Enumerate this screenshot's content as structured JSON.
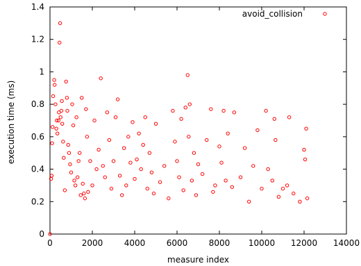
{
  "chart_data": {
    "type": "scatter",
    "title": "",
    "xlabel": "measure index",
    "ylabel": "execution time (ms)",
    "xlim": [
      0,
      14000
    ],
    "ylim": [
      0,
      1.4
    ],
    "x_ticks": [
      "0",
      "2000",
      "4000",
      "6000",
      "8000",
      "10000",
      "12000",
      "14000"
    ],
    "y_ticks": [
      "0",
      "0.2",
      "0.4",
      "0.6",
      "0.8",
      "1",
      "1.2",
      "1.4"
    ],
    "grid": false,
    "legend_position": "top-right",
    "series": [
      {
        "name": "avoid_collision",
        "color": "#ff0000",
        "marker": "open-circle",
        "points": [
          [
            0,
            0.0
          ],
          [
            50,
            0.34
          ],
          [
            80,
            0.36
          ],
          [
            100,
            0.56
          ],
          [
            120,
            0.66
          ],
          [
            150,
            0.85
          ],
          [
            200,
            0.95
          ],
          [
            220,
            0.92
          ],
          [
            260,
            0.8
          ],
          [
            300,
            0.65
          ],
          [
            320,
            0.7
          ],
          [
            350,
            0.62
          ],
          [
            400,
            0.7
          ],
          [
            420,
            0.75
          ],
          [
            450,
            1.18
          ],
          [
            480,
            1.3
          ],
          [
            500,
            0.72
          ],
          [
            540,
            0.76
          ],
          [
            560,
            0.82
          ],
          [
            580,
            0.68
          ],
          [
            620,
            0.57
          ],
          [
            650,
            0.47
          ],
          [
            700,
            0.27
          ],
          [
            760,
            0.94
          ],
          [
            800,
            0.84
          ],
          [
            820,
            0.76
          ],
          [
            860,
            0.55
          ],
          [
            900,
            0.5
          ],
          [
            950,
            0.43
          ],
          [
            1000,
            0.38
          ],
          [
            1050,
            0.8
          ],
          [
            1100,
            0.67
          ],
          [
            1150,
            0.33
          ],
          [
            1200,
            0.3
          ],
          [
            1250,
            0.72
          ],
          [
            1300,
            0.35
          ],
          [
            1350,
            0.45
          ],
          [
            1400,
            0.5
          ],
          [
            1450,
            0.24
          ],
          [
            1500,
            0.84
          ],
          [
            1550,
            0.31
          ],
          [
            1600,
            0.25
          ],
          [
            1650,
            0.22
          ],
          [
            1700,
            0.77
          ],
          [
            1750,
            0.6
          ],
          [
            1800,
            0.26
          ],
          [
            1900,
            0.45
          ],
          [
            2000,
            0.3
          ],
          [
            2100,
            0.7
          ],
          [
            2200,
            0.4
          ],
          [
            2300,
            0.52
          ],
          [
            2400,
            0.96
          ],
          [
            2500,
            0.42
          ],
          [
            2600,
            0.35
          ],
          [
            2700,
            0.75
          ],
          [
            2800,
            0.58
          ],
          [
            2900,
            0.28
          ],
          [
            3000,
            0.45
          ],
          [
            3100,
            0.72
          ],
          [
            3200,
            0.83
          ],
          [
            3300,
            0.36
          ],
          [
            3400,
            0.24
          ],
          [
            3500,
            0.53
          ],
          [
            3600,
            0.3
          ],
          [
            3700,
            0.6
          ],
          [
            3800,
            0.44
          ],
          [
            3900,
            0.69
          ],
          [
            4000,
            0.34
          ],
          [
            4100,
            0.46
          ],
          [
            4200,
            0.62
          ],
          [
            4300,
            0.4
          ],
          [
            4400,
            0.55
          ],
          [
            4500,
            0.72
          ],
          [
            4600,
            0.28
          ],
          [
            4700,
            0.5
          ],
          [
            4800,
            0.38
          ],
          [
            4900,
            0.25
          ],
          [
            5000,
            0.68
          ],
          [
            5200,
            0.32
          ],
          [
            5400,
            0.42
          ],
          [
            5600,
            0.22
          ],
          [
            5800,
            0.76
          ],
          [
            5900,
            0.57
          ],
          [
            6000,
            0.45
          ],
          [
            6100,
            0.35
          ],
          [
            6200,
            0.71
          ],
          [
            6300,
            0.27
          ],
          [
            6400,
            0.78
          ],
          [
            6500,
            0.98
          ],
          [
            6550,
            0.6
          ],
          [
            6600,
            0.8
          ],
          [
            6700,
            0.33
          ],
          [
            6800,
            0.5
          ],
          [
            6900,
            0.24
          ],
          [
            7000,
            0.43
          ],
          [
            7200,
            0.37
          ],
          [
            7400,
            0.58
          ],
          [
            7600,
            0.77
          ],
          [
            7700,
            0.26
          ],
          [
            7800,
            0.3
          ],
          [
            8000,
            0.54
          ],
          [
            8100,
            0.44
          ],
          [
            8200,
            0.76
          ],
          [
            8300,
            0.33
          ],
          [
            8400,
            0.62
          ],
          [
            8600,
            0.29
          ],
          [
            8700,
            0.75
          ],
          [
            9000,
            0.35
          ],
          [
            9200,
            0.53
          ],
          [
            9400,
            0.2
          ],
          [
            9600,
            0.42
          ],
          [
            9800,
            0.64
          ],
          [
            10000,
            0.28
          ],
          [
            10200,
            0.76
          ],
          [
            10300,
            0.4
          ],
          [
            10500,
            0.33
          ],
          [
            10600,
            0.71
          ],
          [
            10650,
            0.58
          ],
          [
            10800,
            0.23
          ],
          [
            11000,
            0.28
          ],
          [
            11200,
            0.3
          ],
          [
            11300,
            0.72
          ],
          [
            11500,
            0.25
          ],
          [
            11800,
            0.2
          ],
          [
            12000,
            0.52
          ],
          [
            12050,
            0.46
          ],
          [
            12100,
            0.65
          ],
          [
            12150,
            0.22
          ]
        ]
      }
    ]
  }
}
